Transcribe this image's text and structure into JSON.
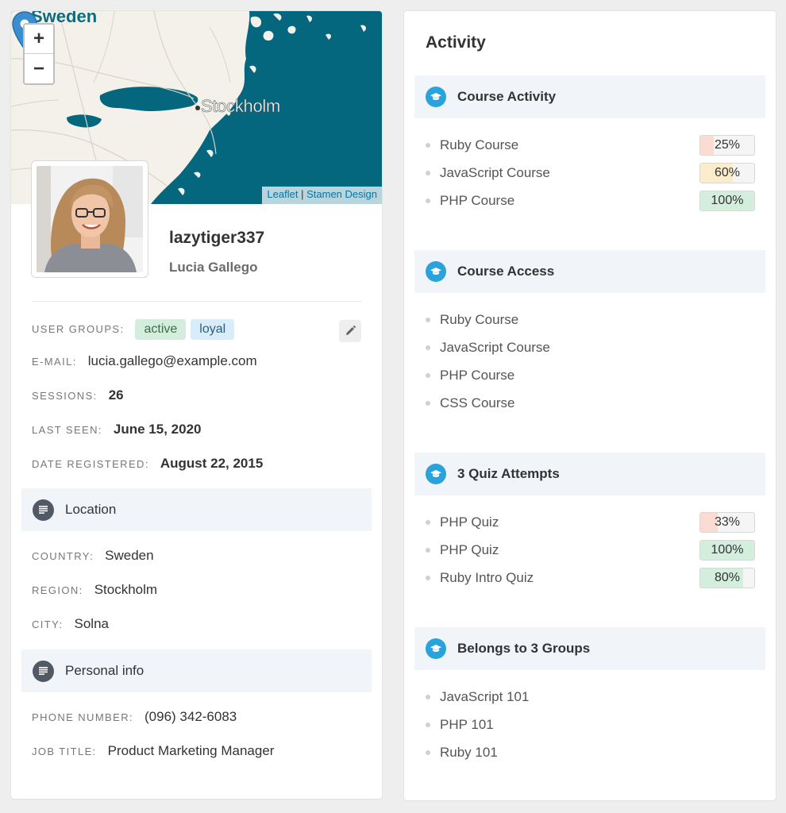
{
  "map": {
    "country_label": "Sweden",
    "city_label": "Stockholm",
    "zoom_in": "+",
    "zoom_out": "−",
    "attribution_leaflet": "Leaflet",
    "attribution_sep": "|",
    "attribution_stamen": "Stamen Design"
  },
  "profile": {
    "username": "lazytiger337",
    "full_name": "Lucia Gallego",
    "user_groups_label": "USER GROUPS:",
    "groups": [
      {
        "name": "active",
        "color": "green"
      },
      {
        "name": "loyal",
        "color": "blue"
      }
    ],
    "email_label": "E-MAIL:",
    "email": "lucia.gallego@example.com",
    "sessions_label": "SESSIONS:",
    "sessions": "26",
    "last_seen_label": "LAST SEEN:",
    "last_seen": "June 15, 2020",
    "registered_label": "DATE REGISTERED:",
    "registered": "August 22, 2015"
  },
  "location": {
    "title": "Location",
    "country_label": "COUNTRY:",
    "country": "Sweden",
    "region_label": "REGION:",
    "region": "Stockholm",
    "city_label": "CITY:",
    "city": "Solna"
  },
  "personal": {
    "title": "Personal info",
    "phone_label": "PHONE NUMBER:",
    "phone": "(096) 342-6083",
    "job_label": "JOB TITLE:",
    "job": "Product Marketing Manager"
  },
  "activity": {
    "title": "Activity",
    "sections": [
      {
        "title": "Course Activity",
        "items": [
          {
            "label": "Ruby Course",
            "percent": "25%",
            "value": 25,
            "color": "#fbdcd2"
          },
          {
            "label": "JavaScript Course",
            "percent": "60%",
            "value": 60,
            "color": "#fbeccb"
          },
          {
            "label": "PHP Course",
            "percent": "100%",
            "value": 100,
            "color": "#d4eedd"
          }
        ]
      },
      {
        "title": "Course Access",
        "items": [
          {
            "label": "Ruby Course"
          },
          {
            "label": "JavaScript Course"
          },
          {
            "label": "PHP Course"
          },
          {
            "label": "CSS Course"
          }
        ]
      },
      {
        "title": "3 Quiz Attempts",
        "items": [
          {
            "label": "PHP Quiz",
            "percent": "33%",
            "value": 33,
            "color": "#fbdcd2"
          },
          {
            "label": "PHP Quiz",
            "percent": "100%",
            "value": 100,
            "color": "#d4eedd"
          },
          {
            "label": "Ruby Intro Quiz",
            "percent": "80%",
            "value": 80,
            "color": "#d4eedd"
          }
        ]
      },
      {
        "title": "Belongs to 3 Groups",
        "items": [
          {
            "label": "JavaScript 101"
          },
          {
            "label": "PHP 101"
          },
          {
            "label": "Ruby 101"
          }
        ]
      }
    ]
  },
  "icons": {
    "section_left": "list-icon",
    "section_right": "graduation-cap-icon",
    "edit": "pencil-icon",
    "marker": "map-marker-icon"
  },
  "colors": {
    "map_sea": "#04677e",
    "map_land": "#f4f1ea",
    "accent_blue": "#2aa2dc",
    "dark_icon": "#515964"
  }
}
